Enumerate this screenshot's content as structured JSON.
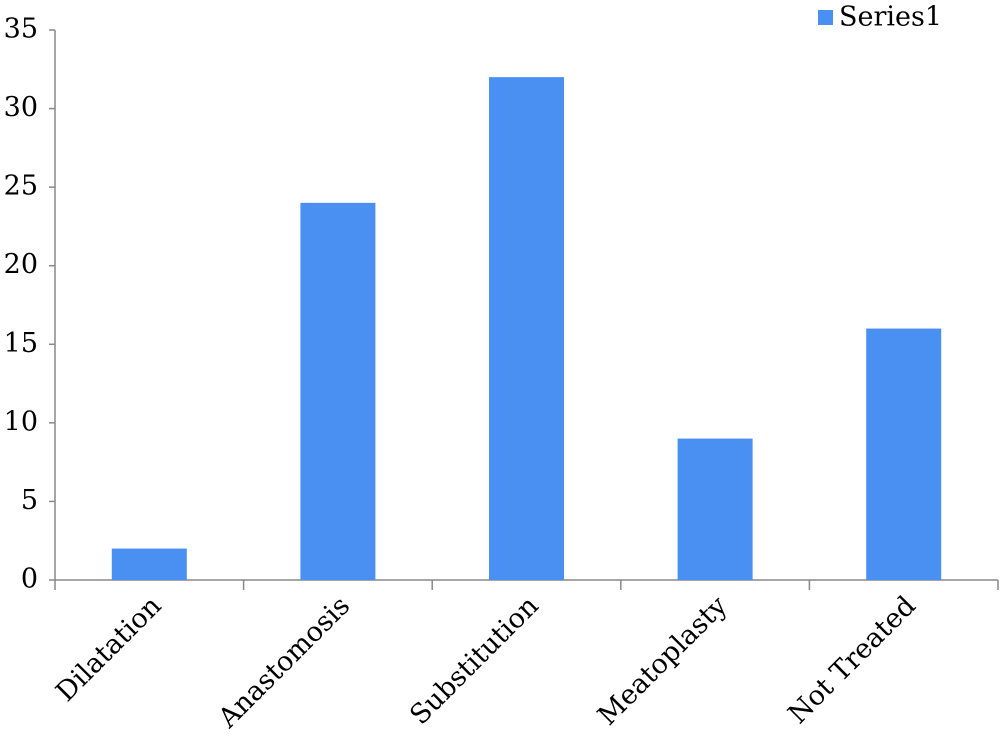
{
  "chart_data": {
    "type": "bar",
    "categories": [
      "Dilatation",
      "Anastomosis",
      "Substitution",
      "Meatoplasty",
      "Not Treated"
    ],
    "series": [
      {
        "name": "Series1",
        "color": "#4a8ff2",
        "values": [
          2,
          24,
          32,
          9,
          16
        ]
      }
    ],
    "ylim": [
      0,
      35
    ],
    "yticks": [
      0,
      5,
      10,
      15,
      20,
      25,
      30,
      35
    ],
    "legend": "top-right"
  }
}
